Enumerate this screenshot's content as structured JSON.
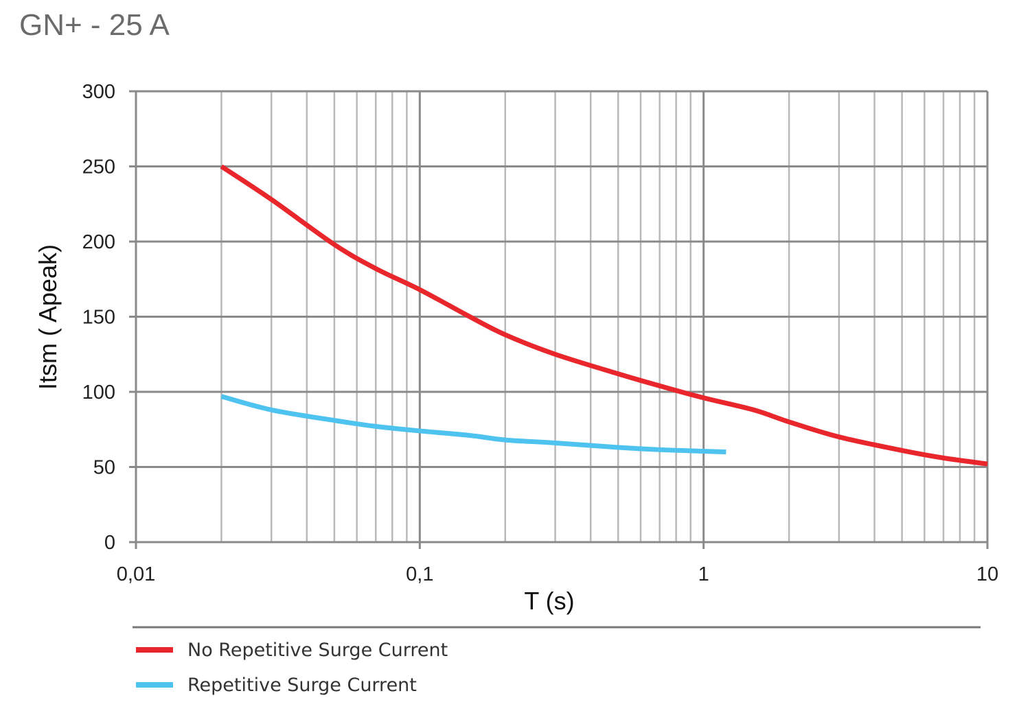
{
  "chart_data": {
    "type": "line",
    "title": "GN+ - 25 A",
    "xlabel": "T (s)",
    "ylabel": "Itsm ( Apeak)",
    "xscale": "log",
    "xlim": [
      0.01,
      10
    ],
    "ylim": [
      0,
      300
    ],
    "x_ticks": [
      0.01,
      0.1,
      1,
      10
    ],
    "x_tick_labels": [
      "0,01",
      "0,1",
      "1",
      "10"
    ],
    "y_ticks": [
      0,
      50,
      100,
      150,
      200,
      250,
      300
    ],
    "y_tick_labels": [
      "0",
      "50",
      "100",
      "150",
      "200",
      "250",
      "300"
    ],
    "grid": true,
    "legend_position": "bottom",
    "series": [
      {
        "name": "No Repetitive Surge Current",
        "color": "#e8262b",
        "x": [
          0.02,
          0.03,
          0.05,
          0.07,
          0.1,
          0.15,
          0.2,
          0.3,
          0.5,
          0.7,
          1,
          1.5,
          2,
          3,
          5,
          7,
          10
        ],
        "y": [
          250,
          228,
          198,
          182,
          168,
          150,
          138,
          125,
          112,
          104,
          96,
          88,
          80,
          70,
          61,
          56,
          52
        ]
      },
      {
        "name": "Repetitive Surge Current",
        "color": "#4ec3ef",
        "x": [
          0.02,
          0.03,
          0.05,
          0.07,
          0.1,
          0.15,
          0.2,
          0.3,
          0.5,
          0.7,
          1,
          1.2
        ],
        "y": [
          97,
          88,
          81,
          77,
          74,
          71,
          68,
          66,
          63,
          61.5,
          60.5,
          60
        ]
      }
    ]
  }
}
